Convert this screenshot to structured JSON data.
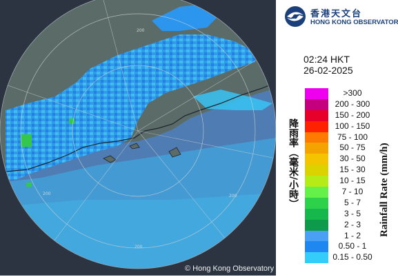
{
  "logo": {
    "chinese_name": "香港天文台",
    "english_name": "HONG KONG OBSERVATORY",
    "icon": "hko-logo-icon"
  },
  "timestamp": {
    "time": "02:24 HKT",
    "date": "26-02-2025"
  },
  "legend": {
    "title_chinese": "降雨率（毫米/小時）",
    "title_english": "Rainfall Rate (mm/h)",
    "items": [
      {
        "label": ">300",
        "color": "#ee00ee"
      },
      {
        "label": "200 - 300",
        "color": "#c4007e"
      },
      {
        "label": "150 - 200",
        "color": "#e6002a"
      },
      {
        "label": "100 - 150",
        "color": "#ff2200"
      },
      {
        "label": "75 - 100",
        "color": "#ff7a00"
      },
      {
        "label": "50 - 75",
        "color": "#f5a300"
      },
      {
        "label": "30 - 50",
        "color": "#f4c400"
      },
      {
        "label": "15 - 30",
        "color": "#dcd200"
      },
      {
        "label": "10 - 15",
        "color": "#b5ec17"
      },
      {
        "label": "7 - 10",
        "color": "#66f04a"
      },
      {
        "label": "5 - 7",
        "color": "#2ed14a"
      },
      {
        "label": "3 - 5",
        "color": "#16b84b"
      },
      {
        "label": "2 - 3",
        "color": "#0e9a4b"
      },
      {
        "label": "1 - 2",
        "color": "#4aa0f5"
      },
      {
        "label": "0.50 - 1",
        "color": "#1e88f0"
      },
      {
        "label": "0.15 - 0.50",
        "color": "#34ccf8"
      }
    ]
  },
  "map": {
    "range_ring_labels": [
      "200",
      "200",
      "200",
      "200"
    ],
    "copyright": "© Hong Kong Observatory",
    "colors": {
      "sea": "#4f7bb0",
      "land": "#5a6a66",
      "background": "#2a3340",
      "rain_light": "#36c6f2",
      "rain_medium": "#1e88f0",
      "rain_heavy": "#2ed14a"
    }
  }
}
